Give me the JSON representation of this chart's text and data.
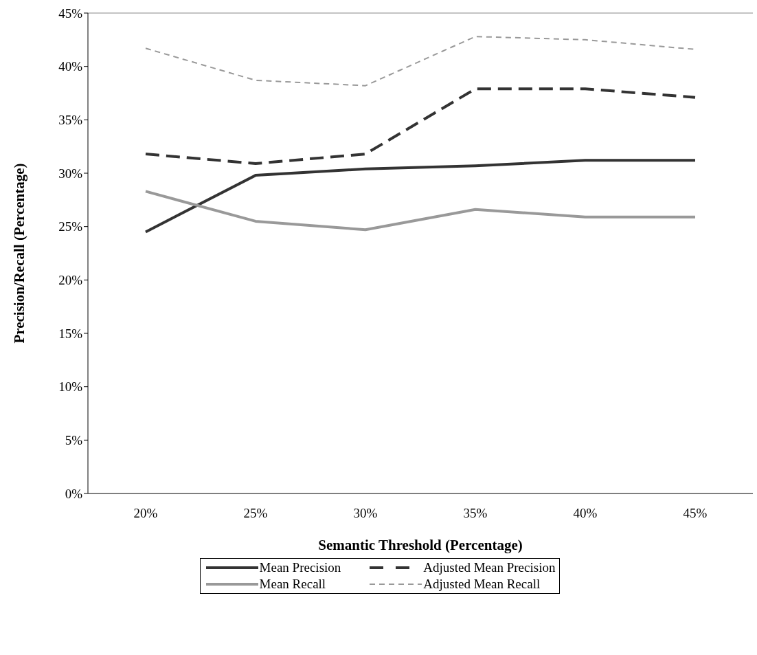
{
  "chart_data": {
    "type": "line",
    "xlabel": "Semantic Threshold (Percentage)",
    "ylabel": "Precision/Recall (Percentage)",
    "categories": [
      "20%",
      "25%",
      "30%",
      "35%",
      "40%",
      "45%"
    ],
    "series": [
      {
        "name": "Mean Precision",
        "color": "#333333",
        "line_style": "solid",
        "values": [
          24.5,
          29.8,
          30.4,
          30.7,
          31.2,
          31.2
        ]
      },
      {
        "name": "Adjusted Mean Precision",
        "color": "#333333",
        "line_style": "dashed",
        "values": [
          31.8,
          30.9,
          31.8,
          37.9,
          37.9,
          37.1
        ]
      },
      {
        "name": "Mean Recall",
        "color": "#999999",
        "line_style": "solid",
        "values": [
          28.3,
          25.5,
          24.7,
          26.6,
          25.9,
          25.9
        ]
      },
      {
        "name": "Adjusted Mean Recall",
        "color": "#999999",
        "line_style": "dashed",
        "values": [
          41.7,
          38.7,
          38.2,
          42.8,
          42.5,
          41.6
        ]
      }
    ],
    "ylim": [
      0,
      45
    ],
    "yticks": [
      {
        "value": 0,
        "label": "0%"
      },
      {
        "value": 5,
        "label": "5%"
      },
      {
        "value": 10,
        "label": "10%"
      },
      {
        "value": 15,
        "label": "15%"
      },
      {
        "value": 20,
        "label": "20%"
      },
      {
        "value": 25,
        "label": "25%"
      },
      {
        "value": 30,
        "label": "30%"
      },
      {
        "value": 35,
        "label": "35%"
      },
      {
        "value": 40,
        "label": "40%"
      },
      {
        "value": 45,
        "label": "45%"
      }
    ],
    "grid": false,
    "legend": "bottom",
    "marker": "none"
  }
}
